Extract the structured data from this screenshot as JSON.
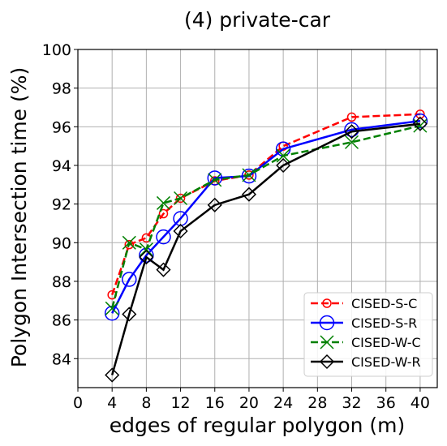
{
  "chart_data": {
    "type": "line",
    "title": "(4) private-car",
    "xlabel": "edges of regular polygon (m)",
    "ylabel": "Polygon Intersection time (%)",
    "xlim": [
      0,
      42
    ],
    "ylim": [
      82.5,
      100
    ],
    "xticks": [
      0,
      4,
      8,
      12,
      16,
      20,
      24,
      28,
      32,
      36,
      40
    ],
    "yticks": [
      84,
      86,
      88,
      90,
      92,
      94,
      96,
      98,
      100
    ],
    "grid": true,
    "legend_position": "lower-right",
    "x": [
      4,
      6,
      8,
      10,
      12,
      16,
      20,
      24,
      32,
      40
    ],
    "series": [
      {
        "name": "CISED-S-C",
        "color": "#ff0000",
        "dash": "dashed",
        "marker": "circle-small",
        "values": [
          87.3,
          89.9,
          90.25,
          91.5,
          92.3,
          93.2,
          93.5,
          95.0,
          96.5,
          96.65
        ]
      },
      {
        "name": "CISED-S-R",
        "color": "#0000ff",
        "dash": "solid",
        "marker": "circle-large",
        "values": [
          86.35,
          88.1,
          89.35,
          90.3,
          91.25,
          93.35,
          93.45,
          94.85,
          95.85,
          96.3
        ]
      },
      {
        "name": "CISED-W-C",
        "color": "#008000",
        "dash": "dashed",
        "marker": "x",
        "values": [
          86.6,
          90.0,
          89.65,
          92.05,
          92.3,
          93.25,
          93.5,
          94.5,
          95.2,
          96.05
        ]
      },
      {
        "name": "CISED-W-R",
        "color": "#000000",
        "dash": "solid",
        "marker": "diamond",
        "values": [
          83.15,
          86.3,
          89.25,
          88.6,
          90.6,
          91.95,
          92.5,
          94.0,
          95.75,
          96.15
        ]
      }
    ]
  }
}
